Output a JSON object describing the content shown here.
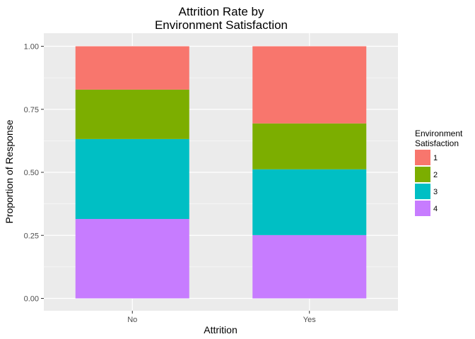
{
  "chart_data": {
    "type": "bar",
    "stacked": true,
    "title_lines": [
      "Attrition Rate by",
      "Environment Satisfaction"
    ],
    "xlabel": "Attrition",
    "ylabel": "Proportion of Response",
    "categories": [
      "No",
      "Yes"
    ],
    "ylim": [
      0,
      1
    ],
    "yticks": [
      "0.00",
      "0.25",
      "0.50",
      "0.75",
      "1.00"
    ],
    "grid": true,
    "legend": {
      "title_lines": [
        "Environment",
        "Satisfaction"
      ],
      "placement": "right"
    },
    "series": [
      {
        "name": "1",
        "color": "#F8766D",
        "values": [
          0.172,
          0.306
        ]
      },
      {
        "name": "2",
        "color": "#7CAE00",
        "values": [
          0.196,
          0.182
        ]
      },
      {
        "name": "3",
        "color": "#00BFC4",
        "values": [
          0.317,
          0.261
        ]
      },
      {
        "name": "4",
        "color": "#C77CFF",
        "values": [
          0.315,
          0.251
        ]
      }
    ]
  }
}
